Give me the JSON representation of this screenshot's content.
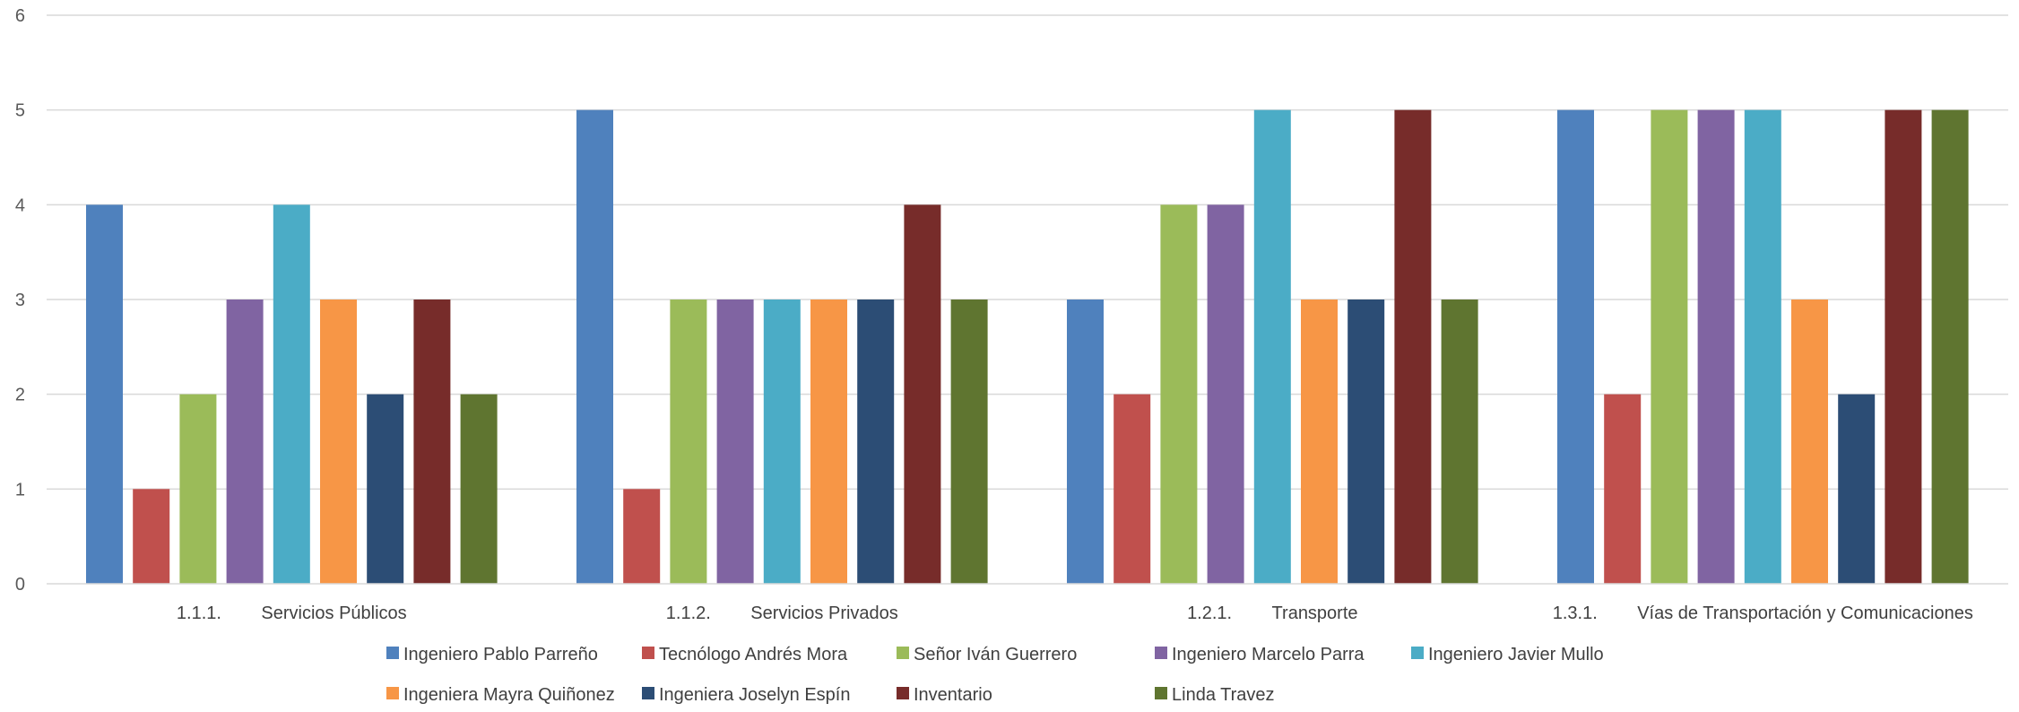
{
  "chart_data": {
    "type": "bar",
    "categories": [
      "1.1.1.        Servicios Públicos",
      "1.1.2.        Servicios Privados",
      "1.2.1.        Transporte",
      "1.3.1.        Vías de Transportación y Comunicaciones"
    ],
    "series": [
      {
        "name": "Ingeniero Pablo Parreño",
        "color": "#4F81BD",
        "values": [
          4,
          5,
          3,
          5
        ]
      },
      {
        "name": "Tecnólogo Andrés Mora",
        "color": "#C0504D",
        "values": [
          1,
          1,
          2,
          2
        ]
      },
      {
        "name": "Señor Iván Guerrero",
        "color": "#9BBB59",
        "values": [
          2,
          3,
          4,
          5
        ]
      },
      {
        "name": "Ingeniero Marcelo Parra",
        "color": "#8064A2",
        "values": [
          3,
          3,
          4,
          5
        ]
      },
      {
        "name": "Ingeniero Javier Mullo",
        "color": "#4BACC6",
        "values": [
          4,
          3,
          5,
          5
        ]
      },
      {
        "name": "Ingeniera Mayra Quiñonez",
        "color": "#F79646",
        "values": [
          3,
          3,
          3,
          3
        ]
      },
      {
        "name": "Ingeniera Joselyn Espín",
        "color": "#2C4D75",
        "values": [
          2,
          3,
          3,
          2
        ]
      },
      {
        "name": "Inventario",
        "color": "#772C2A",
        "values": [
          3,
          4,
          5,
          5
        ]
      },
      {
        "name": "Linda Travez",
        "color": "#5F7530",
        "values": [
          2,
          3,
          3,
          5
        ]
      }
    ],
    "title": "",
    "xlabel": "",
    "ylabel": "",
    "ylim": [
      0,
      6
    ],
    "yticks": [
      "0",
      "1",
      "2",
      "3",
      "4",
      "5",
      "6"
    ],
    "grid": true,
    "legend_position": "bottom"
  }
}
